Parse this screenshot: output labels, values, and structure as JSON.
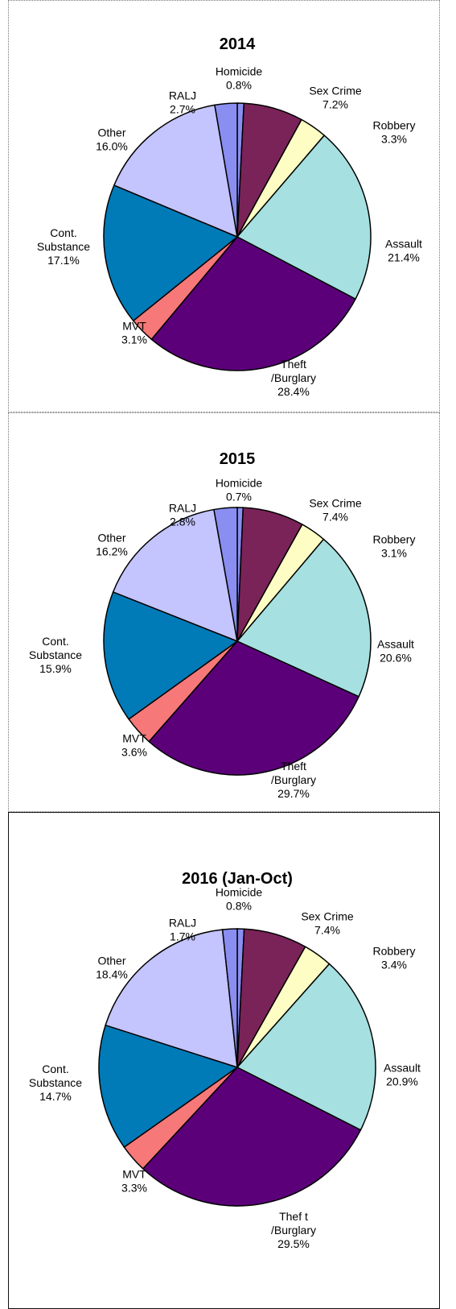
{
  "chart_data": [
    {
      "type": "pie",
      "title": "2014",
      "categories": [
        "Homicide",
        "Sex Crime",
        "Robbery",
        "Assault",
        "Theft\n/Burglary",
        "MVT",
        "Cont.\nSubstance",
        "Other",
        "RALJ"
      ],
      "values": [
        0.8,
        7.2,
        3.3,
        21.4,
        28.4,
        3.1,
        17.1,
        16.0,
        2.7
      ],
      "value_labels": [
        "0.8%",
        "7.2%",
        "3.3%",
        "21.4%",
        "28.4%",
        "3.1%",
        "17.1%",
        "16.0%",
        "2.7%"
      ],
      "colors": [
        "#8a8ef0",
        "#7a2358",
        "#fdfdc4",
        "#a6e0e0",
        "#5c007a",
        "#f67878",
        "#007bb8",
        "#c4c4ff",
        "#8a8ef0"
      ]
    },
    {
      "type": "pie",
      "title": "2015",
      "categories": [
        "Homicide",
        "Sex Crime",
        "Robbery",
        "Assault",
        "Theft\n/Burglary",
        "MVT",
        "Cont.\nSubstance",
        "Other",
        "RALJ"
      ],
      "values": [
        0.7,
        7.4,
        3.1,
        20.6,
        29.7,
        3.6,
        15.9,
        16.2,
        2.8
      ],
      "value_labels": [
        "0.7%",
        "7.4%",
        "3.1%",
        "20.6%",
        "29.7%",
        "3.6%",
        "15.9%",
        "16.2%",
        "2.8%"
      ],
      "colors": [
        "#8a8ef0",
        "#7a2358",
        "#fdfdc4",
        "#a6e0e0",
        "#5c007a",
        "#f67878",
        "#007bb8",
        "#c4c4ff",
        "#8a8ef0"
      ]
    },
    {
      "type": "pie",
      "title": "2016 (Jan-Oct)",
      "categories": [
        "Homicide",
        "Sex Crime",
        "Robbery",
        "Assault",
        "Thef t\n/Burglary",
        "MVT",
        "Cont.\nSubstance",
        "Other",
        "RALJ"
      ],
      "values": [
        0.8,
        7.4,
        3.4,
        20.9,
        29.5,
        3.3,
        14.7,
        18.4,
        1.7
      ],
      "value_labels": [
        "0.8%",
        "7.4%",
        "3.4%",
        "20.9%",
        "29.5%",
        "3.3%",
        "14.7%",
        "18.4%",
        "1.7%"
      ],
      "colors": [
        "#8a8ef0",
        "#7a2358",
        "#fdfdc4",
        "#a6e0e0",
        "#5c007a",
        "#f67878",
        "#007bb8",
        "#c4c4ff",
        "#8a8ef0"
      ]
    }
  ]
}
